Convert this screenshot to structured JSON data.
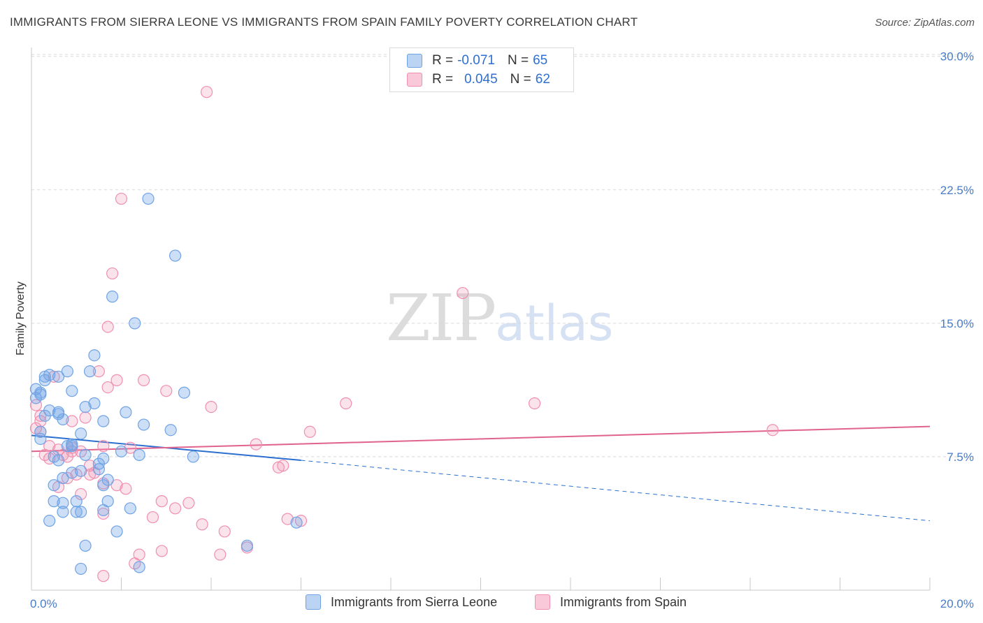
{
  "title": "IMMIGRANTS FROM SIERRA LEONE VS IMMIGRANTS FROM SPAIN FAMILY POVERTY CORRELATION CHART",
  "source": "Source: ZipAtlas.com",
  "watermark": {
    "zip": "ZIP",
    "atlas": "atlas"
  },
  "legend": {
    "row1": {
      "r_label": "R =",
      "r_value": "-0.071",
      "n_label": "N =",
      "n_value": "65"
    },
    "row2": {
      "r_label": "R =",
      "r_value": "0.045",
      "n_label": "N =",
      "n_value": "62"
    }
  },
  "chart_data": {
    "type": "scatter",
    "title": "IMMIGRANTS FROM SIERRA LEONE VS IMMIGRANTS FROM SPAIN FAMILY POVERTY CORRELATION CHART",
    "xlabel": "",
    "ylabel": "Family Poverty",
    "xlim": [
      0,
      20
    ],
    "ylim": [
      0,
      30.5
    ],
    "x_tick_labels": [
      "0.0%",
      "20.0%"
    ],
    "y_ticks": [
      7.5,
      15.0,
      22.5,
      30.0
    ],
    "y_tick_labels": [
      "7.5%",
      "15.0%",
      "22.5%",
      "30.0%"
    ],
    "colors": {
      "sierra_leone": "#6fa3e6",
      "spain": "#f08fb0",
      "sl_line": "#2b6fd0",
      "es_line": "#e0638f"
    },
    "series": [
      {
        "name": "Immigrants from Sierra Leone",
        "r": -0.071,
        "n": 65,
        "trend": {
          "x0": 0,
          "y0": 8.7,
          "x1": 6.0,
          "y1": 7.3,
          "dash_to_x": 20,
          "dash_to_y": 3.9
        },
        "points": [
          [
            0.1,
            11.3
          ],
          [
            0.2,
            11.0
          ],
          [
            0.1,
            10.8
          ],
          [
            0.3,
            12.0
          ],
          [
            0.3,
            11.8
          ],
          [
            0.4,
            12.1
          ],
          [
            0.2,
            8.9
          ],
          [
            0.3,
            9.8
          ],
          [
            0.4,
            10.1
          ],
          [
            0.2,
            8.5
          ],
          [
            0.5,
            7.5
          ],
          [
            0.6,
            9.9
          ],
          [
            0.7,
            9.6
          ],
          [
            0.6,
            10.0
          ],
          [
            0.8,
            12.3
          ],
          [
            0.9,
            11.2
          ],
          [
            1.1,
            8.8
          ],
          [
            0.8,
            8.1
          ],
          [
            0.9,
            8.1
          ],
          [
            0.6,
            7.3
          ],
          [
            0.7,
            6.3
          ],
          [
            0.5,
            5.9
          ],
          [
            0.9,
            6.6
          ],
          [
            1.1,
            6.7
          ],
          [
            1.2,
            7.6
          ],
          [
            1.2,
            10.3
          ],
          [
            1.3,
            12.3
          ],
          [
            1.4,
            13.2
          ],
          [
            1.4,
            10.5
          ],
          [
            1.6,
            9.5
          ],
          [
            1.5,
            6.8
          ],
          [
            1.6,
            5.9
          ],
          [
            1.5,
            7.1
          ],
          [
            1.6,
            7.4
          ],
          [
            1.7,
            6.2
          ],
          [
            1.6,
            4.5
          ],
          [
            1.8,
            16.5
          ],
          [
            1.7,
            5.0
          ],
          [
            1.1,
            4.4
          ],
          [
            1.0,
            5.0
          ],
          [
            0.7,
            4.9
          ],
          [
            0.5,
            5.0
          ],
          [
            0.7,
            4.4
          ],
          [
            0.4,
            3.9
          ],
          [
            1.0,
            4.4
          ],
          [
            1.9,
            3.3
          ],
          [
            2.1,
            10.0
          ],
          [
            2.0,
            7.8
          ],
          [
            2.3,
            15.0
          ],
          [
            2.4,
            7.6
          ],
          [
            2.5,
            9.3
          ],
          [
            2.6,
            22.0
          ],
          [
            2.2,
            4.6
          ],
          [
            3.1,
            9.0
          ],
          [
            3.2,
            18.8
          ],
          [
            3.4,
            11.1
          ],
          [
            3.6,
            7.5
          ],
          [
            4.8,
            2.5
          ],
          [
            5.9,
            3.8
          ],
          [
            1.2,
            2.5
          ],
          [
            1.1,
            1.2
          ],
          [
            2.4,
            1.3
          ],
          [
            0.6,
            12.0
          ],
          [
            0.2,
            11.1
          ],
          [
            0.9,
            8.2
          ]
        ]
      },
      {
        "name": "Immigrants from Spain",
        "r": 0.045,
        "n": 62,
        "trend": {
          "x0": 0,
          "y0": 7.8,
          "x1": 20,
          "y1": 9.2
        },
        "points": [
          [
            0.1,
            10.4
          ],
          [
            0.2,
            9.8
          ],
          [
            0.1,
            9.1
          ],
          [
            0.2,
            9.5
          ],
          [
            0.2,
            8.9
          ],
          [
            0.4,
            8.1
          ],
          [
            0.3,
            7.6
          ],
          [
            0.4,
            7.4
          ],
          [
            0.5,
            12.0
          ],
          [
            0.6,
            7.9
          ],
          [
            0.7,
            7.6
          ],
          [
            0.8,
            7.5
          ],
          [
            0.8,
            6.3
          ],
          [
            0.9,
            7.8
          ],
          [
            0.9,
            8.0
          ],
          [
            0.9,
            9.5
          ],
          [
            1.0,
            6.5
          ],
          [
            1.1,
            5.4
          ],
          [
            1.1,
            7.8
          ],
          [
            1.2,
            9.7
          ],
          [
            1.3,
            7.0
          ],
          [
            1.3,
            6.5
          ],
          [
            1.4,
            6.6
          ],
          [
            1.5,
            12.3
          ],
          [
            1.6,
            6.0
          ],
          [
            1.6,
            4.3
          ],
          [
            1.6,
            8.1
          ],
          [
            1.7,
            11.4
          ],
          [
            1.7,
            14.8
          ],
          [
            1.8,
            17.8
          ],
          [
            1.9,
            11.8
          ],
          [
            1.9,
            5.9
          ],
          [
            2.1,
            5.7
          ],
          [
            2.0,
            22.0
          ],
          [
            2.2,
            8.0
          ],
          [
            2.5,
            11.8
          ],
          [
            2.4,
            2.0
          ],
          [
            2.3,
            1.5
          ],
          [
            2.7,
            4.1
          ],
          [
            2.9,
            2.2
          ],
          [
            2.9,
            5.0
          ],
          [
            3.0,
            11.2
          ],
          [
            3.2,
            4.6
          ],
          [
            3.5,
            4.9
          ],
          [
            3.8,
            3.7
          ],
          [
            3.9,
            28.0
          ],
          [
            4.0,
            10.3
          ],
          [
            4.2,
            2.0
          ],
          [
            4.3,
            3.3
          ],
          [
            4.8,
            2.4
          ],
          [
            5.0,
            8.2
          ],
          [
            5.5,
            6.9
          ],
          [
            5.6,
            7.0
          ],
          [
            5.7,
            4.0
          ],
          [
            6.0,
            3.9
          ],
          [
            6.2,
            8.9
          ],
          [
            7.0,
            10.5
          ],
          [
            9.6,
            16.7
          ],
          [
            11.2,
            10.5
          ],
          [
            16.5,
            9.0
          ],
          [
            0.6,
            5.8
          ],
          [
            1.6,
            0.8
          ]
        ]
      }
    ]
  }
}
